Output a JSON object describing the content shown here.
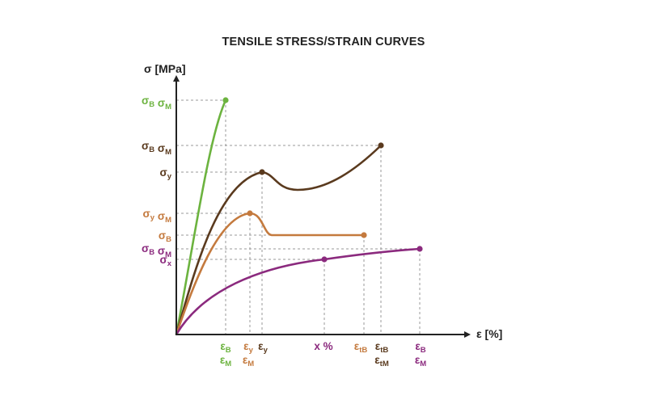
{
  "title": "TENSILE STRESS/STRAIN CURVES",
  "axes": {
    "y_label": "σ [MPa]",
    "x_label": "ε [%]"
  },
  "colors": {
    "green": "#6cb33f",
    "darkbrown": "#5a3a1e",
    "orange": "#c47a3e",
    "purple": "#8b2a7e",
    "axis": "#222222",
    "grid": "#9a9a9a"
  },
  "y_labels": [
    {
      "id": "green-top",
      "color": "green",
      "parts": [
        [
          "σ",
          "B"
        ],
        [
          "σ",
          "M"
        ]
      ]
    },
    {
      "id": "brown-top",
      "color": "darkbrown",
      "parts": [
        [
          "σ",
          "B"
        ],
        [
          "σ",
          "M"
        ]
      ]
    },
    {
      "id": "brown-yield",
      "color": "darkbrown",
      "parts": [
        [
          "σ",
          "y"
        ]
      ]
    },
    {
      "id": "orange-yield",
      "color": "orange",
      "parts": [
        [
          "σ",
          "y"
        ],
        [
          "σ",
          "M"
        ]
      ]
    },
    {
      "id": "orange-break",
      "color": "orange",
      "parts": [
        [
          "σ",
          "B"
        ]
      ]
    },
    {
      "id": "purple-top",
      "color": "purple",
      "parts": [
        [
          "σ",
          "B"
        ],
        [
          "σ",
          "M"
        ]
      ]
    },
    {
      "id": "purple-x",
      "color": "purple",
      "parts": [
        [
          "σ",
          "x"
        ]
      ]
    }
  ],
  "x_labels": [
    {
      "id": "green-eps",
      "color": "green",
      "lines": [
        [
          "ε",
          "B"
        ],
        [
          "ε",
          "M"
        ]
      ]
    },
    {
      "id": "orange-eps-y",
      "color": "orange",
      "lines": [
        [
          "ε",
          "y"
        ],
        [
          "ε",
          "M"
        ]
      ]
    },
    {
      "id": "brown-eps-y",
      "color": "darkbrown",
      "lines": [
        [
          "ε",
          "y"
        ]
      ]
    },
    {
      "id": "purple-x-pct",
      "color": "purple",
      "lines": [
        [
          "x %",
          ""
        ]
      ]
    },
    {
      "id": "orange-eps-tb",
      "color": "orange",
      "lines": [
        [
          "ε",
          "tB"
        ]
      ]
    },
    {
      "id": "brown-eps-tb",
      "color": "darkbrown",
      "lines": [
        [
          "ε",
          "tB"
        ],
        [
          "ε",
          "tM"
        ]
      ]
    },
    {
      "id": "purple-eps-b",
      "color": "purple",
      "lines": [
        [
          "ε",
          "B"
        ],
        [
          "ε",
          "M"
        ]
      ]
    }
  ],
  "curves": [
    "green",
    "darkbrown",
    "orange",
    "purple"
  ]
}
